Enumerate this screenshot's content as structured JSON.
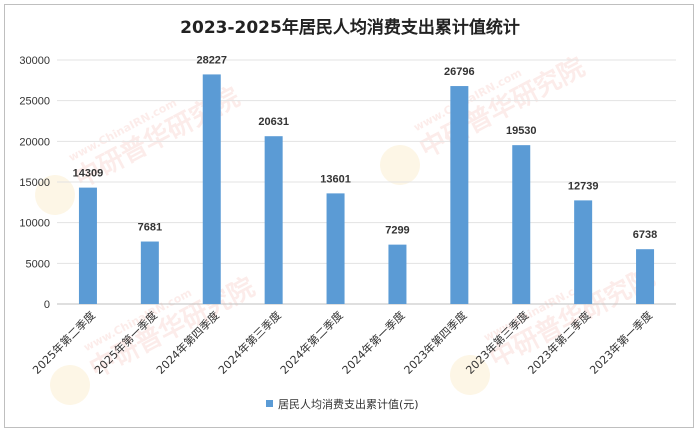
{
  "chart_data": {
    "type": "bar",
    "title": "2023-2025年居民人均消费支出累计值统计",
    "categories": [
      "2025年第二季度",
      "2025年第一季度",
      "2024年第四季度",
      "2024年第三季度",
      "2024年第二季度",
      "2024年第一季度",
      "2023年第四季度",
      "2023年第三季度",
      "2023年第二季度",
      "2023年第一季度"
    ],
    "series": [
      {
        "name": "居民人均消费支出累计值(元)",
        "values": [
          14309,
          7681,
          28227,
          20631,
          13601,
          7299,
          26796,
          19530,
          12739,
          6738
        ]
      }
    ],
    "ylim": [
      0,
      30000
    ],
    "yticks": [
      0,
      5000,
      10000,
      15000,
      20000,
      25000,
      30000
    ],
    "grid": true,
    "legend_position": "bottom",
    "bar_color": "#5b9bd5",
    "data_labels": true
  },
  "watermark": {
    "brand_cn": "中研普华研究院",
    "site": "www.ChinaIRN.com",
    "logo": "CIRN"
  }
}
